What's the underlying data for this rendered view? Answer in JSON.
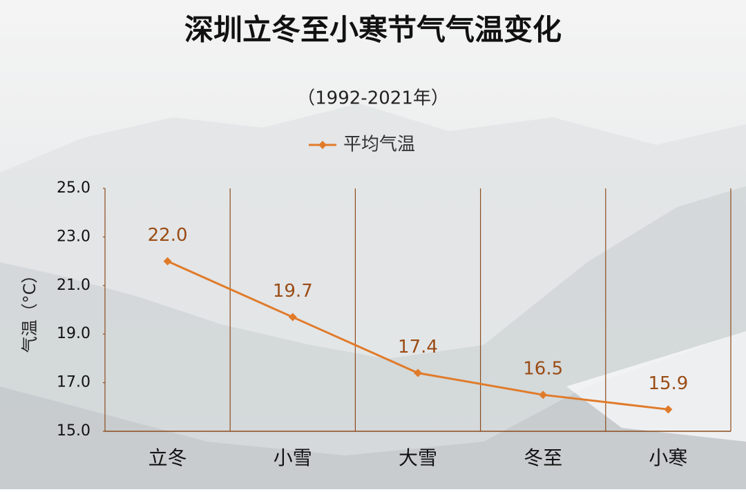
{
  "chart_data": {
    "type": "line",
    "title": "深圳立冬至小寒节气气温变化",
    "subtitle": "（1992-2021年）",
    "y_axis_label": "气温（°C）",
    "categories": [
      "立冬",
      "小雪",
      "大雪",
      "冬至",
      "小寒"
    ],
    "series": [
      {
        "name": "平均气温",
        "color": "#e07b2a",
        "values": [
          22.0,
          19.7,
          17.4,
          16.5,
          15.9
        ],
        "value_labels": [
          "22.0",
          "19.7",
          "17.4",
          "16.5",
          "15.9"
        ]
      }
    ],
    "ylim": [
      15,
      25
    ],
    "yticks": [
      {
        "value": 15,
        "label": "15.0"
      },
      {
        "value": 17,
        "label": "17.0"
      },
      {
        "value": 19,
        "label": "19.0"
      },
      {
        "value": 21,
        "label": "21.0"
      },
      {
        "value": 23,
        "label": "23.0"
      },
      {
        "value": 25,
        "label": "25.0"
      }
    ],
    "legend_position": "top"
  }
}
